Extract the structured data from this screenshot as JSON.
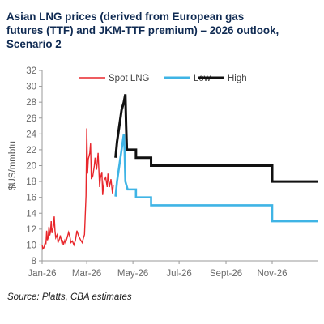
{
  "title_lines": [
    "Asian LNG prices (derived from European gas",
    "futures (TTF) and JKM-TTF premium) – 2026 outlook,",
    "Scenario 2"
  ],
  "source": "Source: Platts, CBA estimates",
  "chart_data": {
    "type": "line",
    "title": "Asian LNG prices (derived from European gas futures (TTF) and JKM-TTF premium) – 2026 outlook, Scenario 2",
    "ylabel": "$US/mmbtu",
    "xlabel": "",
    "ylim": [
      8,
      32
    ],
    "yticks": [
      8,
      10,
      12,
      14,
      16,
      18,
      20,
      22,
      24,
      26,
      28,
      30,
      32
    ],
    "xlim": [
      "2026-01-01",
      "2027-01-01"
    ],
    "xticks": [
      {
        "date": "2026-01-01",
        "label": "Jan-26"
      },
      {
        "date": "2026-03-01",
        "label": "Mar-26"
      },
      {
        "date": "2026-05-01",
        "label": "May-26"
      },
      {
        "date": "2026-07-01",
        "label": "Jul-26"
      },
      {
        "date": "2026-09-01",
        "label": "Sept-26"
      },
      {
        "date": "2026-11-01",
        "label": "Nov-26"
      }
    ],
    "grid": false,
    "legend_position": "top",
    "series": [
      {
        "name": "Spot LNG",
        "color": "#e8262b",
        "points": [
          [
            "2026-01-01",
            10.0
          ],
          [
            "2026-01-02",
            9.5
          ],
          [
            "2026-01-03",
            9.6
          ],
          [
            "2026-01-04",
            9.9
          ],
          [
            "2026-01-05",
            10.3
          ],
          [
            "2026-01-06",
            10.1
          ],
          [
            "2026-01-07",
            11.8
          ],
          [
            "2026-01-08",
            10.6
          ],
          [
            "2026-01-09",
            10.9
          ],
          [
            "2026-01-10",
            12.3
          ],
          [
            "2026-01-11",
            11.2
          ],
          [
            "2026-01-12",
            11.6
          ],
          [
            "2026-01-13",
            13.0
          ],
          [
            "2026-01-14",
            11.5
          ],
          [
            "2026-01-15",
            11.9
          ],
          [
            "2026-01-16",
            12.4
          ],
          [
            "2026-01-17",
            13.6
          ],
          [
            "2026-01-18",
            11.8
          ],
          [
            "2026-01-19",
            10.9
          ],
          [
            "2026-01-21",
            11.3
          ],
          [
            "2026-01-22",
            10.3
          ],
          [
            "2026-01-24",
            10.8
          ],
          [
            "2026-01-25",
            11.2
          ],
          [
            "2026-01-27",
            10.3
          ],
          [
            "2026-01-28",
            10.6
          ],
          [
            "2026-01-29",
            10.0
          ],
          [
            "2026-01-31",
            10.6
          ],
          [
            "2026-02-01",
            10.3
          ],
          [
            "2026-02-03",
            10.9
          ],
          [
            "2026-02-05",
            11.6
          ],
          [
            "2026-02-07",
            10.9
          ],
          [
            "2026-02-08",
            10.3
          ],
          [
            "2026-02-10",
            10.5
          ],
          [
            "2026-02-12",
            10.0
          ],
          [
            "2026-02-14",
            10.6
          ],
          [
            "2026-02-16",
            11.8
          ],
          [
            "2026-02-18",
            11.2
          ],
          [
            "2026-02-21",
            10.6
          ],
          [
            "2026-02-23",
            10.3
          ],
          [
            "2026-02-25",
            11.0
          ],
          [
            "2026-02-26",
            11.3
          ],
          [
            "2026-02-28",
            16.2
          ],
          [
            "2026-03-01",
            24.7
          ],
          [
            "2026-03-02",
            19.0
          ],
          [
            "2026-03-03",
            20.8
          ],
          [
            "2026-03-05",
            21.6
          ],
          [
            "2026-03-06",
            22.8
          ],
          [
            "2026-03-07",
            18.3
          ],
          [
            "2026-03-09",
            18.7
          ],
          [
            "2026-03-11",
            20.0
          ],
          [
            "2026-03-12",
            21.0
          ],
          [
            "2026-03-14",
            19.5
          ],
          [
            "2026-03-16",
            21.6
          ],
          [
            "2026-03-18",
            17.3
          ],
          [
            "2026-03-19",
            18.4
          ],
          [
            "2026-03-21",
            19.2
          ],
          [
            "2026-03-22",
            16.3
          ],
          [
            "2026-03-24",
            18.2
          ],
          [
            "2026-03-26",
            18.5
          ],
          [
            "2026-03-28",
            17.3
          ],
          [
            "2026-03-29",
            19.0
          ],
          [
            "2026-03-31",
            17.3
          ],
          [
            "2026-04-02",
            18.3
          ],
          [
            "2026-04-04",
            16.5
          ],
          [
            "2026-04-05",
            17.5
          ]
        ]
      },
      {
        "name": "Low",
        "color": "#3fb4e5",
        "points": [
          [
            "2026-04-08",
            16.1
          ],
          [
            "2026-04-10",
            18.0
          ],
          [
            "2026-04-13",
            20.0
          ],
          [
            "2026-04-16",
            22.0
          ],
          [
            "2026-04-19",
            24.0
          ],
          [
            "2026-04-20",
            22.0
          ],
          [
            "2026-04-21",
            18.0
          ],
          [
            "2026-04-24",
            17.0
          ],
          [
            "2026-05-05",
            17.0
          ],
          [
            "2026-05-05",
            16.0
          ],
          [
            "2026-05-25",
            16.0
          ],
          [
            "2026-05-25",
            15.0
          ],
          [
            "2026-11-01",
            15.0
          ],
          [
            "2026-11-01",
            13.0
          ],
          [
            "2026-12-31",
            13.0
          ]
        ]
      },
      {
        "name": "High",
        "color": "#111111",
        "points": [
          [
            "2026-04-08",
            21.0
          ],
          [
            "2026-04-10",
            23.0
          ],
          [
            "2026-04-13",
            25.0
          ],
          [
            "2026-04-16",
            27.0
          ],
          [
            "2026-04-19",
            28.0
          ],
          [
            "2026-04-21",
            29.0
          ],
          [
            "2026-04-22",
            25.0
          ],
          [
            "2026-04-23",
            22.0
          ],
          [
            "2026-05-05",
            22.0
          ],
          [
            "2026-05-05",
            21.0
          ],
          [
            "2026-05-25",
            21.0
          ],
          [
            "2026-05-25",
            20.0
          ],
          [
            "2026-11-01",
            20.0
          ],
          [
            "2026-11-01",
            18.0
          ],
          [
            "2026-12-31",
            18.0
          ]
        ]
      }
    ]
  }
}
